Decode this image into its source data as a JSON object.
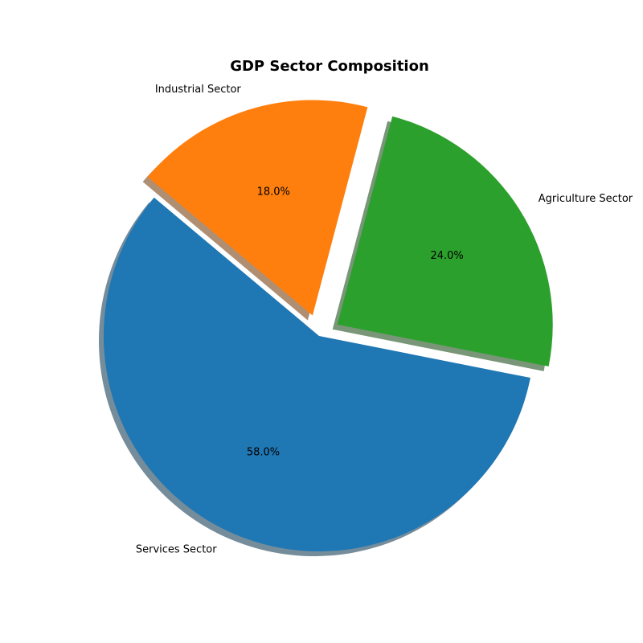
{
  "chart_data": {
    "type": "pie",
    "title": "GDP Sector Composition",
    "slices": [
      {
        "label": "Services Sector",
        "value": 58.0,
        "pct_label": "58.0%",
        "color": "#1f77b4",
        "explode": 0.0
      },
      {
        "label": "Agriculture Sector",
        "value": 24.0,
        "pct_label": "24.0%",
        "color": "#2ca02c",
        "explode": 0.1
      },
      {
        "label": "Industrial Sector",
        "value": 18.0,
        "pct_label": "18.0%",
        "color": "#ff7f0e",
        "explode": 0.1
      }
    ],
    "start_angle_deg": 140,
    "direction": "counterclockwise",
    "shadow": true,
    "legend": "none"
  }
}
